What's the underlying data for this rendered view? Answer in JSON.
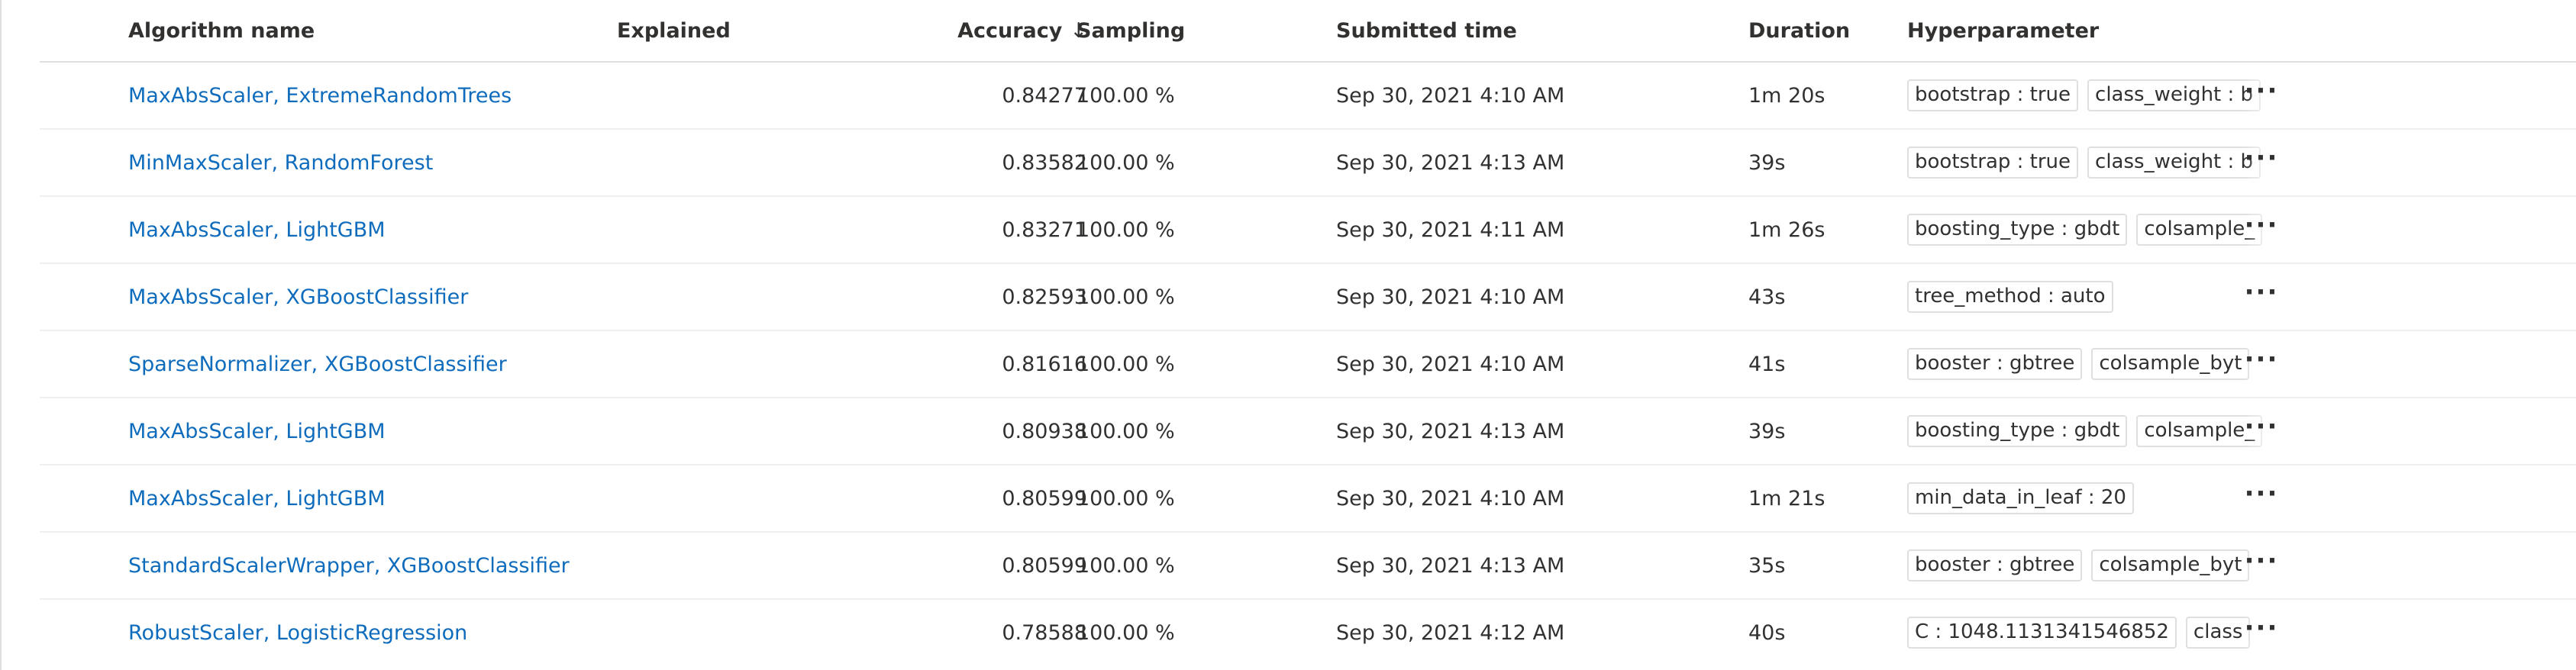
{
  "header": {
    "algorithm_name": "Algorithm name",
    "explained": "Explained",
    "accuracy": "Accuracy",
    "accuracy_sort_icon": "arrow-down-icon",
    "sort_arrow": "↓",
    "sampling": "Sampling",
    "submitted_time": "Submitted time",
    "duration": "Duration",
    "hyperparameter": "Hyperparameter"
  },
  "more_label": "···",
  "accent_color": "#0f6cbd",
  "rows": [
    {
      "name": "MaxAbsScaler, ExtremeRandomTrees",
      "explained": "",
      "accuracy": "0.84277",
      "sampling": "100.00 %",
      "submitted": "Sep 30, 2021 4:10 AM",
      "duration": "1m 20s",
      "hyperparams": [
        "bootstrap : true",
        "class_weight : b"
      ]
    },
    {
      "name": "MinMaxScaler, RandomForest",
      "explained": "",
      "accuracy": "0.83582",
      "sampling": "100.00 %",
      "submitted": "Sep 30, 2021 4:13 AM",
      "duration": "39s",
      "hyperparams": [
        "bootstrap : true",
        "class_weight : b"
      ]
    },
    {
      "name": "MaxAbsScaler, LightGBM",
      "explained": "",
      "accuracy": "0.83271",
      "sampling": "100.00 %",
      "submitted": "Sep 30, 2021 4:11 AM",
      "duration": "1m 26s",
      "hyperparams": [
        "boosting_type : gbdt",
        "colsample_"
      ]
    },
    {
      "name": "MaxAbsScaler, XGBoostClassifier",
      "explained": "",
      "accuracy": "0.82593",
      "sampling": "100.00 %",
      "submitted": "Sep 30, 2021 4:10 AM",
      "duration": "43s",
      "hyperparams": [
        "tree_method : auto"
      ]
    },
    {
      "name": "SparseNormalizer, XGBoostClassifier",
      "explained": "",
      "accuracy": "0.81616",
      "sampling": "100.00 %",
      "submitted": "Sep 30, 2021 4:10 AM",
      "duration": "41s",
      "hyperparams": [
        "booster : gbtree",
        "colsample_byt"
      ]
    },
    {
      "name": "MaxAbsScaler, LightGBM",
      "explained": "",
      "accuracy": "0.80938",
      "sampling": "100.00 %",
      "submitted": "Sep 30, 2021 4:13 AM",
      "duration": "39s",
      "hyperparams": [
        "boosting_type : gbdt",
        "colsample_"
      ]
    },
    {
      "name": "MaxAbsScaler, LightGBM",
      "explained": "",
      "accuracy": "0.80599",
      "sampling": "100.00 %",
      "submitted": "Sep 30, 2021 4:10 AM",
      "duration": "1m 21s",
      "hyperparams": [
        "min_data_in_leaf : 20"
      ]
    },
    {
      "name": "StandardScalerWrapper, XGBoostClassifier",
      "explained": "",
      "accuracy": "0.80599",
      "sampling": "100.00 %",
      "submitted": "Sep 30, 2021 4:13 AM",
      "duration": "35s",
      "hyperparams": [
        "booster : gbtree",
        "colsample_byt"
      ]
    },
    {
      "name": "RobustScaler, LogisticRegression",
      "explained": "",
      "accuracy": "0.78588",
      "sampling": "100.00 %",
      "submitted": "Sep 30, 2021 4:12 AM",
      "duration": "40s",
      "hyperparams": [
        "C : 1048.1131341546852",
        "class"
      ]
    }
  ]
}
